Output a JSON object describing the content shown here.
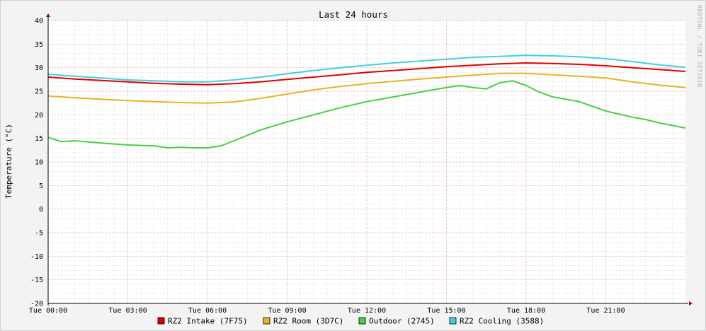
{
  "chart_data": {
    "type": "line",
    "title": "Last 24 hours",
    "ylabel": "Temperature (°C)",
    "xlabel": "",
    "side_label": "RRDTOOL / TOBI OETIKER",
    "ylim": [
      -20,
      40
    ],
    "yticks": [
      40,
      35,
      30,
      25,
      20,
      15,
      10,
      5,
      0,
      -5,
      -10,
      -15,
      -20
    ],
    "xlim": [
      0,
      24
    ],
    "xticks": [
      {
        "x": 0,
        "label": "Tue 00:00"
      },
      {
        "x": 3,
        "label": "Tue 03:00"
      },
      {
        "x": 6,
        "label": "Tue 06:00"
      },
      {
        "x": 9,
        "label": "Tue 09:00"
      },
      {
        "x": 12,
        "label": "Tue 12:00"
      },
      {
        "x": 15,
        "label": "Tue 15:00"
      },
      {
        "x": 18,
        "label": "Tue 18:00"
      },
      {
        "x": 21,
        "label": "Tue 21:00"
      }
    ],
    "grid": true,
    "legend_position": "bottom",
    "series": [
      {
        "name": "RZ2 Intake (7F75)",
        "color": "#dd0000",
        "x": [
          0,
          1,
          2,
          3,
          4,
          5,
          6,
          7,
          8,
          9,
          10,
          11,
          12,
          13,
          14,
          15,
          16,
          17,
          18,
          19,
          20,
          21,
          22,
          23,
          24
        ],
        "values": [
          28.0,
          27.6,
          27.3,
          27.0,
          26.7,
          26.5,
          26.4,
          26.6,
          27.0,
          27.5,
          28.0,
          28.5,
          29.0,
          29.4,
          29.8,
          30.2,
          30.5,
          30.8,
          31.0,
          30.9,
          30.7,
          30.4,
          30.0,
          29.6,
          29.2
        ]
      },
      {
        "name": "RZ2 Room (3D7C)",
        "color": "#e6b422",
        "x": [
          0,
          1,
          2,
          3,
          4,
          5,
          6,
          7,
          8,
          9,
          10,
          11,
          12,
          13,
          14,
          15,
          16,
          17,
          18,
          19,
          20,
          21,
          22,
          23,
          24
        ],
        "values": [
          24.0,
          23.6,
          23.3,
          23.0,
          22.8,
          22.6,
          22.5,
          22.7,
          23.5,
          24.4,
          25.3,
          26.0,
          26.6,
          27.1,
          27.6,
          28.0,
          28.4,
          28.8,
          28.8,
          28.5,
          28.2,
          27.8,
          27.0,
          26.3,
          25.8
        ]
      },
      {
        "name": "Outdoor (2745)",
        "color": "#44d044",
        "x": [
          0,
          0.5,
          1,
          2,
          3,
          4,
          4.5,
          5,
          5.5,
          6,
          6.5,
          7,
          8,
          9,
          10,
          11,
          12,
          13,
          14,
          15,
          15.5,
          16,
          16.5,
          17,
          17.5,
          18,
          18.5,
          19,
          20,
          21,
          22,
          22.5,
          23,
          24
        ],
        "values": [
          15.2,
          14.3,
          14.5,
          14.0,
          13.6,
          13.4,
          13.0,
          13.1,
          13.0,
          13.0,
          13.4,
          14.5,
          16.8,
          18.5,
          20.0,
          21.5,
          22.8,
          23.8,
          24.8,
          25.8,
          26.2,
          25.8,
          25.5,
          26.8,
          27.2,
          26.2,
          24.8,
          23.8,
          22.8,
          20.8,
          19.5,
          19.0,
          18.3,
          17.2
        ]
      },
      {
        "name": "RZ2 Cooling (3588)",
        "color": "#40d0e0",
        "x": [
          0,
          1,
          2,
          3,
          4,
          5,
          6,
          7,
          8,
          9,
          10,
          11,
          12,
          13,
          14,
          15,
          16,
          17,
          18,
          19,
          20,
          21,
          22,
          23,
          24
        ],
        "values": [
          28.6,
          28.2,
          27.8,
          27.4,
          27.2,
          27.0,
          27.0,
          27.4,
          28.0,
          28.7,
          29.4,
          30.0,
          30.5,
          31.0,
          31.4,
          31.8,
          32.2,
          32.4,
          32.6,
          32.5,
          32.3,
          31.9,
          31.3,
          30.6,
          30.1
        ]
      }
    ]
  },
  "legend": {
    "items": [
      {
        "label": "RZ2 Intake (7F75)",
        "color": "#dd0000"
      },
      {
        "label": "RZ2 Room (3D7C)",
        "color": "#e6b422"
      },
      {
        "label": "Outdoor (2745)",
        "color": "#44d044"
      },
      {
        "label": "RZ2 Cooling (3588)",
        "color": "#40d0e0"
      }
    ]
  }
}
